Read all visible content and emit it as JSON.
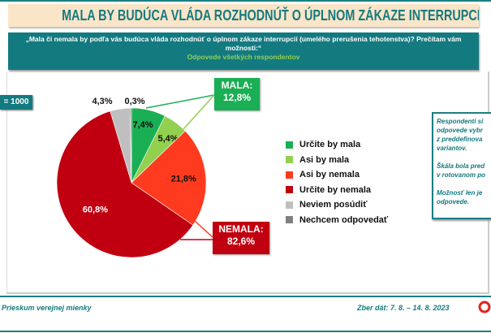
{
  "title": "MALA BY BUDÚCA VLÁDA ROZHODNÚŤ O ÚPLNOM ZÁKAZE INTERRUPCIÍ?",
  "question": "„Mala či nemala by podľa vás budúca vláda rozhodnúť o úplnom zákaze interrupcií (umelého prerušenia tehotenstva)? Prečítam vám možnosti:“",
  "subtitle": "Odpovede všetkých respondentov",
  "sample": "= 1000",
  "note": "Respondenti si\nodpovede vybr\nz preddefinova\nvariantov.\n\nŠkála bola pred\nv rotovanom po\n\nMožnosť len je\nodpovede.",
  "footer": {
    "left": "Prieskum verejnej mienky",
    "right": "Zber dát: 7. 8. – 14. 8. 2023"
  },
  "chart_data": {
    "type": "pie",
    "categories": [
      "Určite by mala",
      "Asi by mala",
      "Asi by nemala",
      "Určite by nemala",
      "Neviem posúdiť",
      "Nechcem odpovedať"
    ],
    "values": [
      7.4,
      5.4,
      21.8,
      60.8,
      4.3,
      0.3
    ],
    "labels": [
      "7,4%",
      "5,4%",
      "21,8%",
      "60,8%",
      "4,3%",
      "0,3%"
    ],
    "colors": [
      "#1aaf54",
      "#92d050",
      "#ff3b1f",
      "#c00010",
      "#bfbfbf",
      "#808080"
    ],
    "legend_position": "right",
    "annotations": [
      {
        "label": "MALA:",
        "value": "12,8%",
        "color": "#1aaf54"
      },
      {
        "label": "NEMALA:",
        "value": "82,6%",
        "color": "#c00010"
      }
    ]
  }
}
